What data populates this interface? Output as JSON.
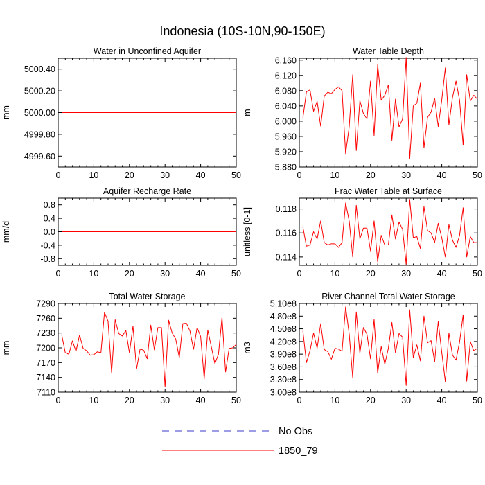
{
  "title": "Indonesia (10S-10N,90-150E)",
  "colors": {
    "obs": "#3b3bcc",
    "model": "#ff0000",
    "axis": "#000000"
  },
  "legend": {
    "placement": "bottom-center",
    "entries": [
      {
        "label": "No Obs",
        "style": "dashed",
        "color": "#3b3bcc"
      },
      {
        "label": "1850_79",
        "style": "solid",
        "color": "#ff0000"
      }
    ]
  },
  "chart_data": [
    {
      "type": "line",
      "title": "Water in Unconfined Aquifer",
      "ylabel": "mm",
      "xlim": [
        0,
        50
      ],
      "ylim": [
        4999.5,
        5000.5
      ],
      "xticks": [
        0,
        10,
        20,
        30,
        40,
        50
      ],
      "xtick_labels": [
        "0",
        "10",
        "20",
        "30",
        "40",
        "50"
      ],
      "yticks": [
        4999.6,
        4999.8,
        5000.0,
        5000.2,
        5000.4
      ],
      "ytick_labels": [
        "4999.60",
        "4999.80",
        "5000.00",
        "5000.20",
        "5000.40"
      ],
      "series": [
        {
          "name": "1850_79",
          "x": [
            1,
            50
          ],
          "y": [
            5000.0,
            5000.0
          ]
        }
      ]
    },
    {
      "type": "line",
      "title": "Water Table Depth",
      "ylabel": "m",
      "xlim": [
        0,
        50
      ],
      "ylim": [
        5.88,
        6.165
      ],
      "xticks": [
        0,
        10,
        20,
        30,
        40,
        50
      ],
      "xtick_labels": [
        "0",
        "10",
        "20",
        "30",
        "40",
        "50"
      ],
      "yticks": [
        5.88,
        5.92,
        5.96,
        6.0,
        6.04,
        6.08,
        6.12,
        6.16
      ],
      "ytick_labels": [
        "5.880",
        "5.920",
        "5.960",
        "6.000",
        "6.040",
        "6.080",
        "6.120",
        "6.160"
      ],
      "series": [
        {
          "name": "1850_79",
          "x": [
            1,
            2,
            3,
            4,
            5,
            6,
            7,
            8,
            9,
            10,
            11,
            12,
            13,
            14,
            15,
            16,
            17,
            18,
            19,
            20,
            21,
            22,
            23,
            24,
            25,
            26,
            27,
            28,
            29,
            30,
            31,
            32,
            33,
            34,
            35,
            36,
            37,
            38,
            39,
            40,
            41,
            42,
            43,
            44,
            45,
            46,
            47,
            48,
            49,
            50
          ],
          "y": [
            6.008,
            6.077,
            6.082,
            6.026,
            6.052,
            5.987,
            6.066,
            6.076,
            6.072,
            6.083,
            6.09,
            6.08,
            5.915,
            5.985,
            6.122,
            5.923,
            6.054,
            6.02,
            6.006,
            6.105,
            5.962,
            6.148,
            6.055,
            6.068,
            6.095,
            5.95,
            6.058,
            5.985,
            6.006,
            6.167,
            5.902,
            6.04,
            6.047,
            6.1,
            5.93,
            6.01,
            6.024,
            6.06,
            5.986,
            6.056,
            6.14,
            5.99,
            6.062,
            6.105,
            6.055,
            5.937,
            6.122,
            6.053,
            6.068,
            6.058
          ]
        }
      ]
    },
    {
      "type": "line",
      "title": "Aquifer Recharge Rate",
      "ylabel": "mm/d",
      "xlim": [
        0,
        50
      ],
      "ylim": [
        -1.0,
        1.0
      ],
      "xticks": [
        0,
        10,
        20,
        30,
        40,
        50
      ],
      "xtick_labels": [
        "0",
        "10",
        "20",
        "30",
        "40",
        "50"
      ],
      "yticks": [
        -0.8,
        -0.4,
        0.0,
        0.4,
        0.8
      ],
      "ytick_labels": [
        "-0.8",
        "-0.4",
        "0.0",
        "0.4",
        "0.8"
      ],
      "series": [
        {
          "name": "1850_79",
          "x": [
            1,
            50
          ],
          "y": [
            0.0,
            0.0
          ]
        }
      ]
    },
    {
      "type": "line",
      "title": "Frac Water Table at Surface",
      "ylabel": "unitless [0-1]",
      "xlim": [
        0,
        50
      ],
      "ylim": [
        0.1133,
        0.1189
      ],
      "xticks": [
        0,
        10,
        20,
        30,
        40,
        50
      ],
      "xtick_labels": [
        "0",
        "10",
        "20",
        "30",
        "40",
        "50"
      ],
      "yticks": [
        0.114,
        0.116,
        0.118
      ],
      "ytick_labels": [
        "0.114",
        "0.116",
        "0.118"
      ],
      "series": [
        {
          "name": "1850_79",
          "x": [
            1,
            2,
            3,
            4,
            5,
            6,
            7,
            8,
            9,
            10,
            11,
            12,
            13,
            14,
            15,
            16,
            17,
            18,
            19,
            20,
            21,
            22,
            23,
            24,
            25,
            26,
            27,
            28,
            29,
            30,
            31,
            32,
            33,
            34,
            35,
            36,
            37,
            38,
            39,
            40,
            41,
            42,
            43,
            44,
            45,
            46,
            47,
            48,
            49,
            50
          ],
          "y": [
            0.1165,
            0.1149,
            0.115,
            0.1161,
            0.1155,
            0.117,
            0.1152,
            0.115,
            0.1151,
            0.1151,
            0.1148,
            0.1152,
            0.1185,
            0.117,
            0.114,
            0.1183,
            0.1155,
            0.1164,
            0.1164,
            0.1145,
            0.117,
            0.1136,
            0.1158,
            0.115,
            0.115,
            0.1175,
            0.1155,
            0.1169,
            0.1163,
            0.1134,
            0.1188,
            0.1156,
            0.1157,
            0.1147,
            0.1182,
            0.1162,
            0.116,
            0.1152,
            0.1168,
            0.1156,
            0.114,
            0.1167,
            0.1154,
            0.1148,
            0.1158,
            0.1181,
            0.114,
            0.1157,
            0.1152,
            0.1152
          ]
        }
      ]
    },
    {
      "type": "line",
      "title": "Total Water Storage",
      "ylabel": "mm",
      "xlim": [
        0,
        50
      ],
      "ylim": [
        7110,
        7290
      ],
      "xticks": [
        0,
        10,
        20,
        30,
        40,
        50
      ],
      "xtick_labels": [
        "0",
        "10",
        "20",
        "30",
        "40",
        "50"
      ],
      "yticks": [
        7110,
        7140,
        7170,
        7200,
        7230,
        7260,
        7290
      ],
      "ytick_labels": [
        "7110",
        "7140",
        "7170",
        "7200",
        "7230",
        "7260",
        "7290"
      ],
      "series": [
        {
          "name": "1850_79",
          "x": [
            1,
            2,
            3,
            4,
            5,
            6,
            7,
            8,
            9,
            10,
            11,
            12,
            13,
            14,
            15,
            16,
            17,
            18,
            19,
            20,
            21,
            22,
            23,
            24,
            25,
            26,
            27,
            28,
            29,
            30,
            31,
            32,
            33,
            34,
            35,
            36,
            37,
            38,
            39,
            40,
            41,
            42,
            43,
            44,
            45,
            46,
            47,
            48,
            49,
            50
          ],
          "y": [
            7226,
            7190,
            7187,
            7214,
            7193,
            7226,
            7199,
            7194,
            7185,
            7186,
            7192,
            7190,
            7272,
            7254,
            7149,
            7257,
            7229,
            7224,
            7235,
            7190,
            7244,
            7157,
            7198,
            7195,
            7178,
            7246,
            7196,
            7241,
            7241,
            7121,
            7256,
            7230,
            7218,
            7180,
            7249,
            7250,
            7234,
            7197,
            7241,
            7223,
            7137,
            7236,
            7202,
            7168,
            7187,
            7262,
            7151,
            7199,
            7200,
            7207
          ]
        }
      ]
    },
    {
      "type": "line",
      "title": "River Channel Total Water Storage",
      "ylabel": "m3",
      "xlim": [
        0,
        50
      ],
      "ylim": [
        300000000,
        510000000
      ],
      "xticks": [
        0,
        10,
        20,
        30,
        40,
        50
      ],
      "xtick_labels": [
        "0",
        "10",
        "20",
        "30",
        "40",
        "50"
      ],
      "yticks": [
        300000000,
        330000000,
        360000000,
        390000000,
        420000000,
        450000000,
        480000000,
        510000000
      ],
      "ytick_labels": [
        "3.00e8",
        "3.30e8",
        "3.60e8",
        "3.90e8",
        "4.20e8",
        "4.50e8",
        "4.80e8",
        "5.10e8"
      ],
      "series": [
        {
          "name": "1850_79",
          "x": [
            1,
            2,
            3,
            4,
            5,
            6,
            7,
            8,
            9,
            10,
            11,
            12,
            13,
            14,
            15,
            16,
            17,
            18,
            19,
            20,
            21,
            22,
            23,
            24,
            25,
            26,
            27,
            28,
            29,
            30,
            31,
            32,
            33,
            34,
            35,
            36,
            37,
            38,
            39,
            40,
            41,
            42,
            43,
            44,
            45,
            46,
            47,
            48,
            49,
            50
          ],
          "y": [
            445000000,
            370000000,
            398000000,
            440000000,
            404000000,
            462000000,
            401000000,
            396000000,
            378000000,
            404000000,
            402000000,
            397000000,
            502000000,
            438000000,
            334000000,
            490000000,
            392000000,
            453000000,
            437000000,
            379000000,
            472000000,
            345000000,
            408000000,
            366000000,
            404000000,
            465000000,
            393000000,
            439000000,
            430000000,
            316000000,
            495000000,
            382000000,
            412000000,
            374000000,
            480000000,
            417000000,
            422000000,
            372000000,
            467000000,
            394000000,
            325000000,
            440000000,
            388000000,
            376000000,
            419000000,
            483000000,
            326000000,
            420000000,
            398000000,
            404000000
          ]
        }
      ]
    }
  ]
}
